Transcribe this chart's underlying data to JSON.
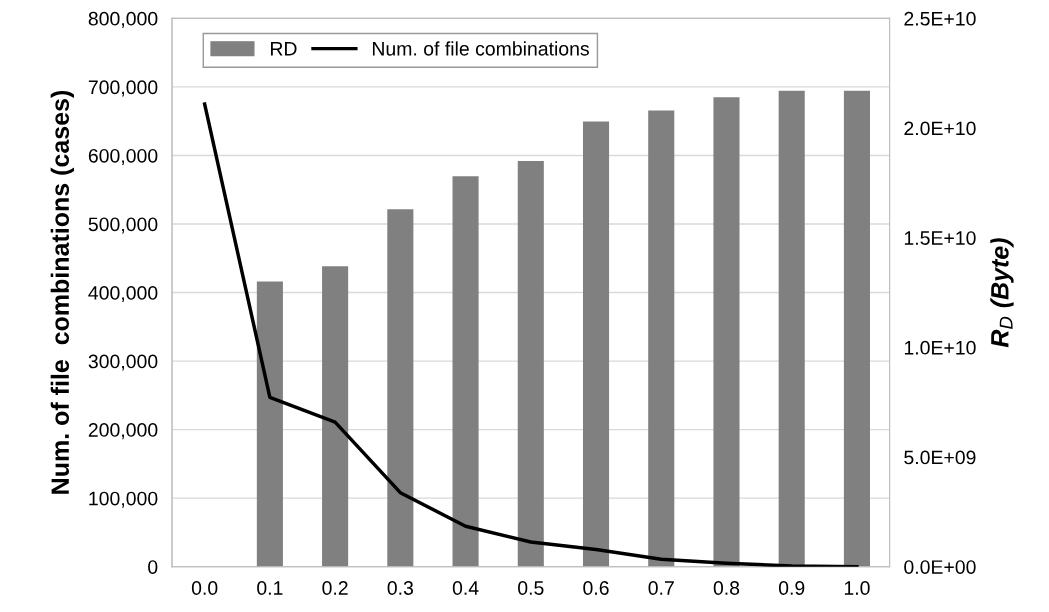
{
  "chart_data": {
    "type": "bar",
    "categories": [
      "0.0",
      "0.1",
      "0.2",
      "0.3",
      "0.4",
      "0.5",
      "0.6",
      "0.7",
      "0.8",
      "0.9",
      "1.0"
    ],
    "series": [
      {
        "name": "RD",
        "axis": "y2",
        "color": "#808080",
        "values": [
          0,
          13000000000.0,
          13700000000.0,
          16300000000.0,
          17800000000.0,
          18500000000.0,
          20300000000.0,
          20800000000.0,
          21400000000.0,
          21700000000.0,
          21700000000.0
        ]
      },
      {
        "name": "Num. of file combinations",
        "type": "line",
        "color": "#000000",
        "values": [
          675000,
          247000,
          211000,
          108000,
          59000,
          36000,
          25000,
          11000,
          5000,
          1000,
          0
        ]
      }
    ],
    "ylabel": "Num. of file  combinations (cases)",
    "y2label": "R$_{D}$ (Byte)",
    "ylim": [
      0,
      800000
    ],
    "yticks": [
      {
        "value": 0,
        "label": "0"
      },
      {
        "value": 100000,
        "label": "100,000"
      },
      {
        "value": 200000,
        "label": "200,000"
      },
      {
        "value": 300000,
        "label": "300,000"
      },
      {
        "value": 400000,
        "label": "400,000"
      },
      {
        "value": 500000,
        "label": "500,000"
      },
      {
        "value": 600000,
        "label": "600,000"
      },
      {
        "value": 700000,
        "label": "700,000"
      },
      {
        "value": 800000,
        "label": "800,000"
      }
    ],
    "y2lim": [
      0,
      25000000000.0
    ],
    "y2ticks": [
      {
        "value": 0,
        "label": "0.0E+00"
      },
      {
        "value": 5000000000.0,
        "label": "5.0E+09"
      },
      {
        "value": 10000000000.0,
        "label": "1.0E+10"
      },
      {
        "value": 15000000000.0,
        "label": "1.5E+10"
      },
      {
        "value": 20000000000.0,
        "label": "2.0E+10"
      },
      {
        "value": 25000000000.0,
        "label": "2.5E+10"
      }
    ],
    "grid": "y",
    "legend": "top left",
    "marker": "none",
    "line_style": "solid"
  }
}
